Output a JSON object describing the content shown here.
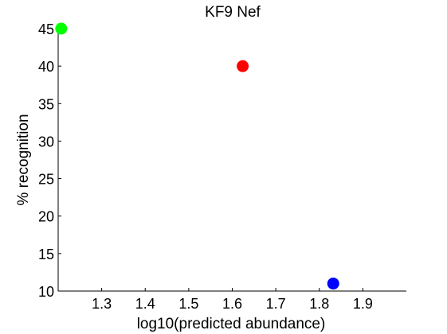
{
  "chart_data": {
    "type": "scatter",
    "title": "KF9 Nef",
    "xlabel": "log10(predicted abundance)",
    "ylabel": "% recognition",
    "xlim": [
      1.2,
      2.0
    ],
    "ylim": [
      10,
      45
    ],
    "xticks": [
      1.3,
      1.4,
      1.5,
      1.6,
      1.7,
      1.8,
      1.9
    ],
    "yticks": [
      10,
      15,
      20,
      25,
      30,
      35,
      40,
      45
    ],
    "grid": false,
    "points": [
      {
        "x": 1.207,
        "y": 45,
        "color": "#00ff00"
      },
      {
        "x": 1.624,
        "y": 40,
        "color": "#ff0000"
      },
      {
        "x": 1.832,
        "y": 11,
        "color": "#0000ff"
      }
    ]
  }
}
